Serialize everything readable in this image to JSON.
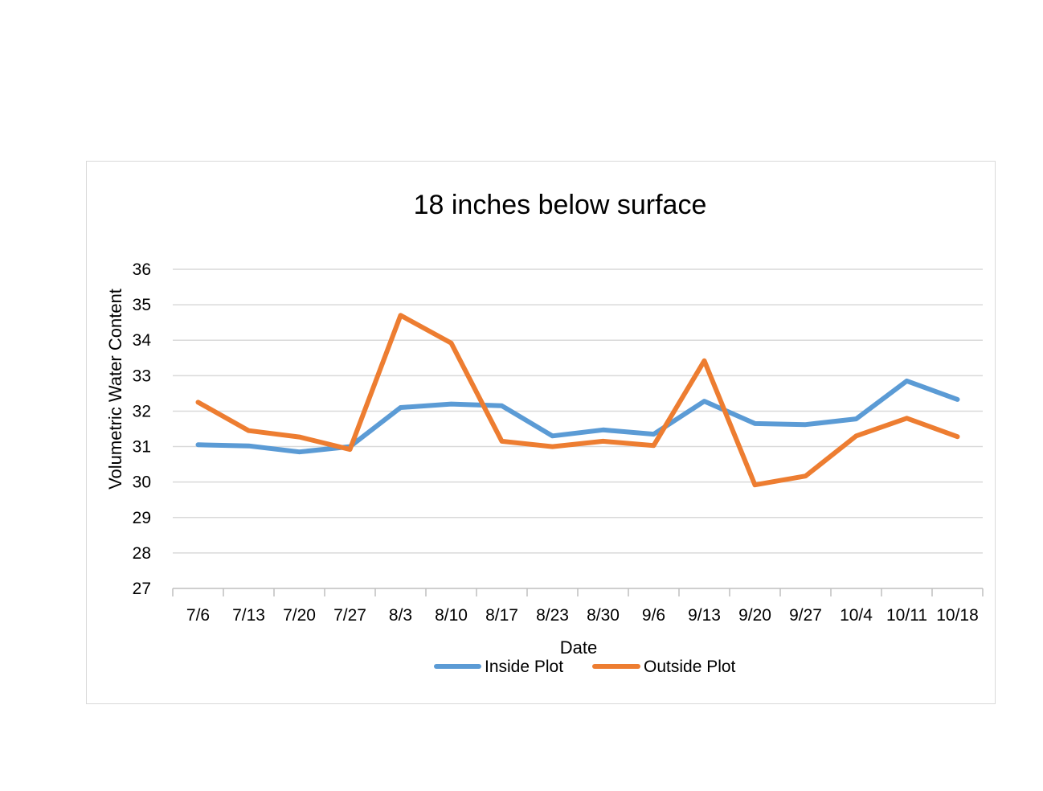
{
  "chart_data": {
    "type": "line",
    "title": "18 inches below surface",
    "xlabel": "Date",
    "ylabel": "Volumetric Water Content",
    "categories": [
      "7/6",
      "7/13",
      "7/20",
      "7/27",
      "8/3",
      "8/10",
      "8/17",
      "8/23",
      "8/30",
      "9/6",
      "9/13",
      "9/20",
      "9/27",
      "10/4",
      "10/11",
      "10/18"
    ],
    "ylim": [
      27,
      36
    ],
    "yticks": [
      "27",
      "28",
      "29",
      "30",
      "31",
      "32",
      "33",
      "34",
      "35",
      "36"
    ],
    "grid": true,
    "legend_position": "bottom",
    "series": [
      {
        "name": "Inside Plot",
        "color": "#5B9BD5",
        "values": [
          31.05,
          31.02,
          30.85,
          31.0,
          32.1,
          32.2,
          32.15,
          31.3,
          31.47,
          31.35,
          32.28,
          31.65,
          31.62,
          31.78,
          32.85,
          32.33
        ]
      },
      {
        "name": "Outside Plot",
        "color": "#ED7D31",
        "values": [
          32.25,
          31.45,
          31.27,
          30.92,
          34.7,
          33.92,
          31.15,
          31.0,
          31.15,
          31.03,
          33.42,
          29.92,
          30.17,
          31.3,
          31.8,
          31.28
        ]
      }
    ]
  }
}
